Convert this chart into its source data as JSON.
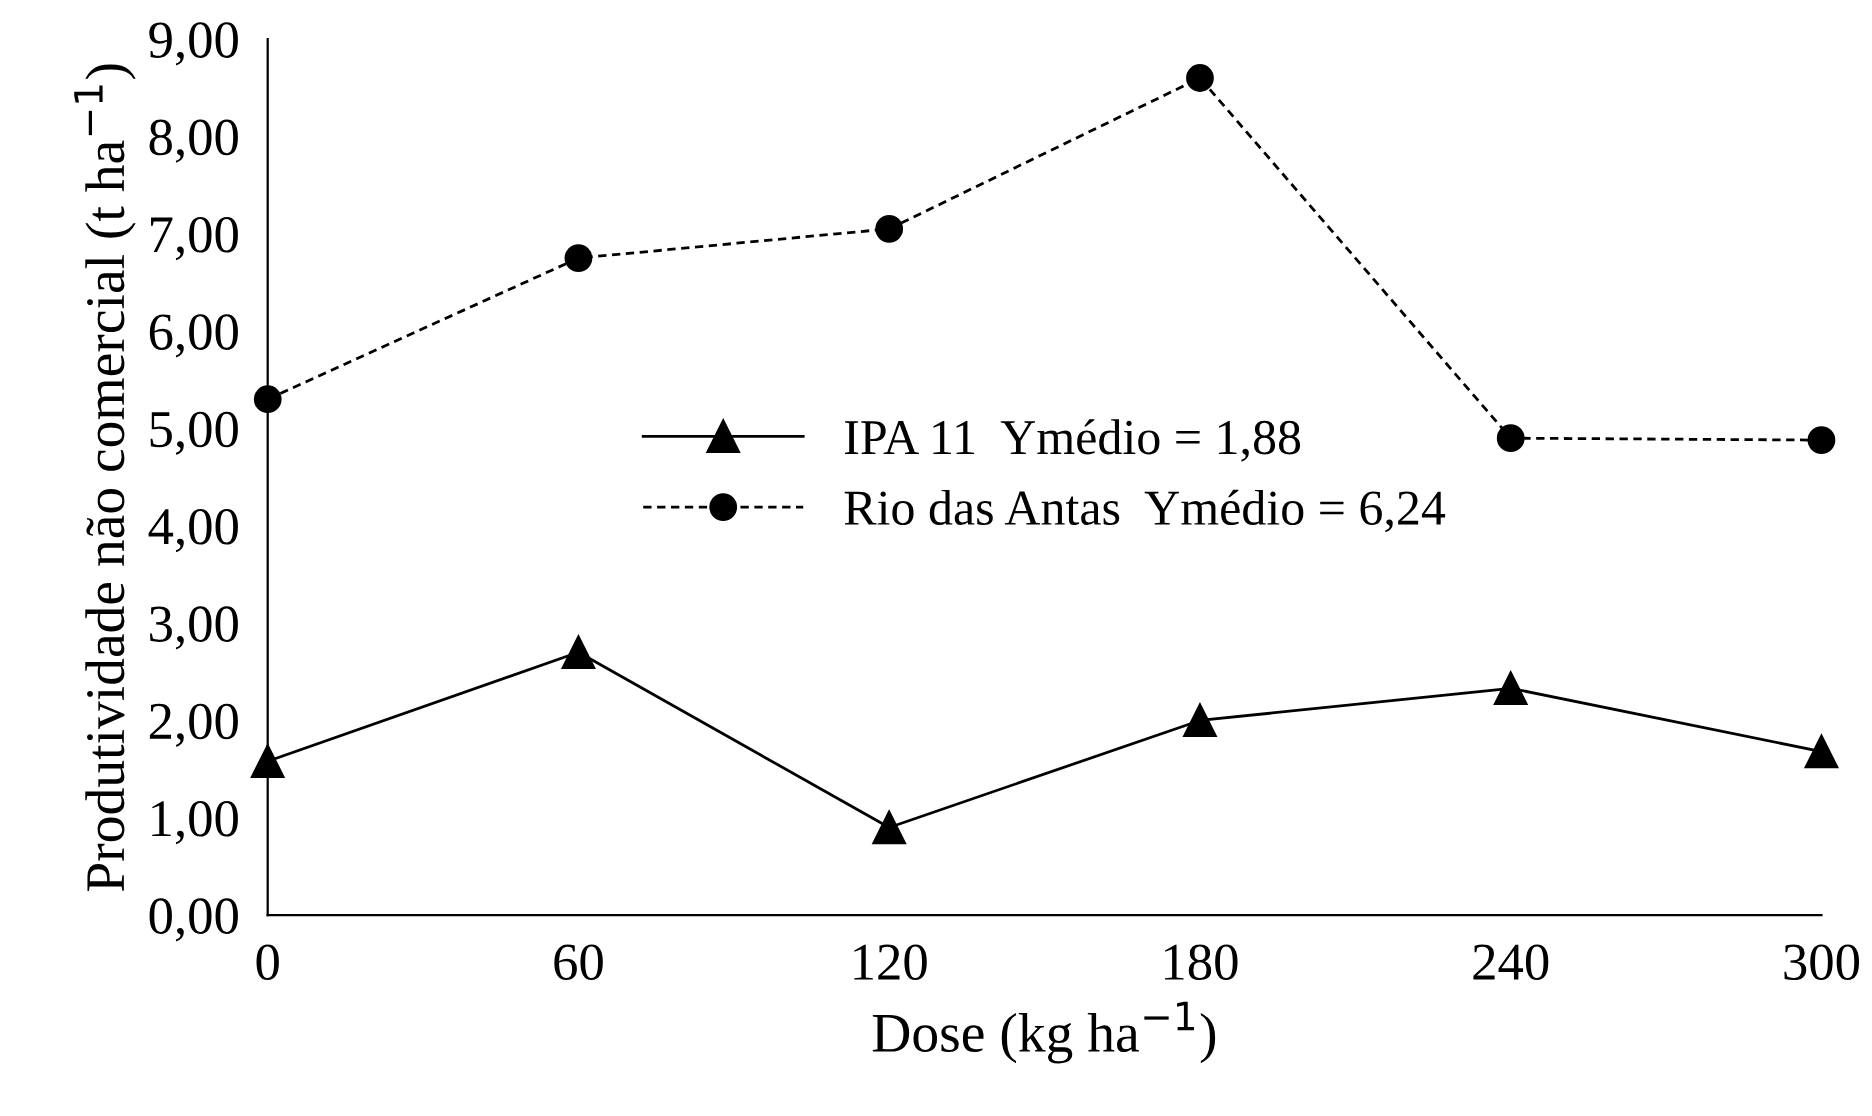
{
  "chart_data": {
    "type": "line",
    "xlabel": "Dose (kg ha$^{−1}$)",
    "ylabel": "Produtividade não comercial (t ha$^{−1}$)",
    "x": [
      0,
      60,
      120,
      180,
      240,
      300
    ],
    "xlim": [
      0,
      300
    ],
    "xticks": [
      0,
      60,
      120,
      180,
      240,
      300
    ],
    "ylim": [
      0,
      9
    ],
    "yticks": [
      {
        "value": 0,
        "label": "0,00"
      },
      {
        "value": 1,
        "label": "1,00"
      },
      {
        "value": 2,
        "label": "2,00"
      },
      {
        "value": 3,
        "label": "3,00"
      },
      {
        "value": 4,
        "label": "4,00"
      },
      {
        "value": 5,
        "label": "5,00"
      },
      {
        "value": 6,
        "label": "6,00"
      },
      {
        "value": 7,
        "label": "7,00"
      },
      {
        "value": 8,
        "label": "8,00"
      },
      {
        "value": 9,
        "label": "9,00"
      }
    ],
    "grid": false,
    "legend": "center",
    "series": [
      {
        "name": "IPA 11  Ymédio = 1,88",
        "color": "#000000",
        "marker": "triangle",
        "line_style": "solid",
        "values": [
          1.58,
          2.7,
          0.9,
          2.0,
          2.33,
          1.68
        ]
      },
      {
        "name": "Rio das Antas  Ymédio = 6,24",
        "color": "#000000",
        "marker": "circle",
        "line_style": "dashed",
        "values": [
          5.3,
          6.75,
          7.05,
          8.6,
          4.9,
          4.88
        ]
      }
    ]
  }
}
